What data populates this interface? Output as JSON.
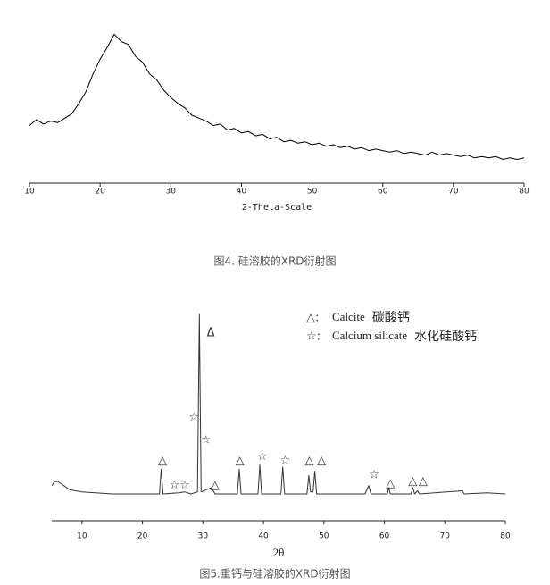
{
  "chart_data": [
    {
      "type": "line",
      "x_label": "2-Theta-Scale",
      "caption": "图4. 硅溶胶的XRD衍射图",
      "xlim": [
        10,
        80
      ],
      "xticks": [
        10,
        20,
        30,
        40,
        50,
        60,
        70,
        80
      ],
      "ylim": [
        0,
        100
      ],
      "color": "#000000",
      "x": [
        10,
        11,
        12,
        13,
        14,
        15,
        16,
        17,
        18,
        19,
        20,
        21,
        22,
        23,
        24,
        25,
        26,
        27,
        28,
        29,
        30,
        31,
        32,
        33,
        34,
        35,
        36,
        37,
        38,
        39,
        40,
        41,
        42,
        43,
        44,
        45,
        46,
        47,
        48,
        49,
        50,
        51,
        52,
        53,
        54,
        55,
        56,
        57,
        58,
        59,
        60,
        61,
        62,
        63,
        64,
        65,
        66,
        67,
        68,
        69,
        70,
        71,
        72,
        73,
        74,
        75,
        76,
        77,
        78,
        79,
        80
      ],
      "values": [
        33,
        37,
        34,
        36,
        35,
        38,
        41,
        48,
        56,
        68,
        78,
        86,
        95,
        90,
        88,
        80,
        76,
        68,
        64,
        57,
        52,
        48,
        45,
        40,
        38,
        36,
        33,
        34,
        30,
        31,
        28,
        29,
        26,
        27,
        24,
        25,
        22,
        23,
        21,
        22,
        20,
        21,
        19,
        20,
        18,
        19,
        17,
        18,
        16,
        17,
        16,
        15,
        16,
        14,
        15,
        14,
        13,
        15,
        13,
        14,
        13,
        12,
        13,
        11,
        12,
        11,
        12,
        10,
        11,
        10,
        11
      ]
    },
    {
      "type": "line",
      "x_label": "2θ",
      "caption": "图5.重钙与硅溶胶的XRD衍射图",
      "xlim": [
        5,
        80
      ],
      "xticks": [
        10,
        20,
        30,
        40,
        50,
        60,
        70,
        80
      ],
      "ylim": [
        0,
        100
      ],
      "color": "#333333",
      "x": [
        5,
        5.5,
        6,
        7,
        8,
        10,
        15,
        20,
        22.8,
        23.1,
        23.4,
        26,
        27,
        28,
        29.1,
        29.4,
        29.7,
        31.4,
        32,
        35.7,
        36,
        36.3,
        39.1,
        39.4,
        39.7,
        42.9,
        43.2,
        43.5,
        47.2,
        47.5,
        47.8,
        48.2,
        48.5,
        48.8,
        56.8,
        57.4,
        57.8,
        60.5,
        60.7,
        61,
        64.4,
        64.7,
        65,
        65.5,
        65.8,
        72.9,
        73.2,
        77,
        80
      ],
      "values": [
        17,
        19,
        19,
        17,
        15,
        14,
        13,
        13,
        13,
        25,
        13,
        13.5,
        14,
        13,
        14,
        100,
        14,
        16,
        13,
        13,
        25,
        13,
        13,
        27,
        13,
        13,
        26,
        13,
        13,
        22,
        14,
        14,
        24,
        13,
        13,
        17,
        13,
        13,
        16,
        13,
        13,
        16,
        13,
        14.5,
        13,
        14.5,
        13,
        13.5,
        13
      ],
      "markers": [
        {
          "x": 23.3,
          "y": 29,
          "label": "△"
        },
        {
          "x": 32,
          "y": 17,
          "label": "△"
        },
        {
          "x": 36.1,
          "y": 29,
          "label": "△"
        },
        {
          "x": 47.6,
          "y": 29,
          "label": "△"
        },
        {
          "x": 49.6,
          "y": 29,
          "label": "△"
        },
        {
          "x": 61,
          "y": 18,
          "label": "△"
        },
        {
          "x": 64.7,
          "y": 19,
          "label": "△"
        },
        {
          "x": 66.4,
          "y": 19,
          "label": "△"
        },
        {
          "x": 31.3,
          "y": 91,
          "label": "Δ"
        },
        {
          "x": 25.3,
          "y": 17,
          "label": "☆"
        },
        {
          "x": 27,
          "y": 17,
          "label": "☆"
        },
        {
          "x": 28.5,
          "y": 50,
          "label": "☆"
        },
        {
          "x": 30.5,
          "y": 39,
          "label": "☆"
        },
        {
          "x": 39.8,
          "y": 31,
          "label": "☆"
        },
        {
          "x": 43.6,
          "y": 29,
          "label": "☆"
        },
        {
          "x": 58.3,
          "y": 22,
          "label": "☆"
        }
      ],
      "legend": [
        {
          "symbol": "△:",
          "name": "Calcite",
          "name_zh": "碳酸钙"
        },
        {
          "symbol": "☆:",
          "name": "Calcium silicate",
          "name_zh": "水化硅酸钙"
        }
      ]
    }
  ]
}
